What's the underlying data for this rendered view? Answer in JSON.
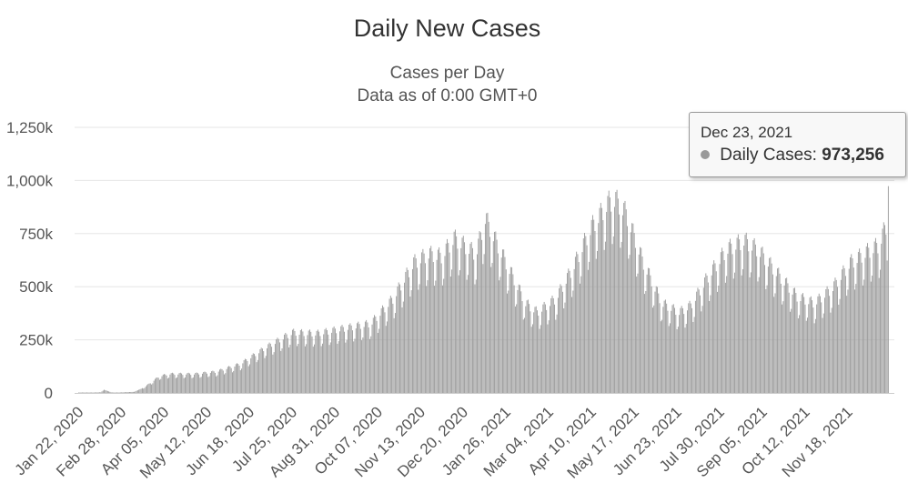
{
  "chart_data": {
    "type": "bar",
    "title": "Daily New Cases",
    "subtitle_lines": [
      "Cases per Day",
      "Data as of 0:00 GMT+0"
    ],
    "xlabel": "",
    "ylabel": "",
    "ylim": [
      0,
      1250000
    ],
    "y_ticks": [
      {
        "value": 0,
        "label": "0"
      },
      {
        "value": 250000,
        "label": "250k"
      },
      {
        "value": 500000,
        "label": "500k"
      },
      {
        "value": 750000,
        "label": "750k"
      },
      {
        "value": 1000000,
        "label": "1,000k"
      },
      {
        "value": 1250000,
        "label": "1,250k"
      }
    ],
    "x_start": "2020-01-22",
    "x_end": "2021-12-23",
    "x_tick_labels": [
      {
        "date": "2020-01-22",
        "label": "Jan 22, 2020"
      },
      {
        "date": "2020-02-28",
        "label": "Feb 28, 2020"
      },
      {
        "date": "2020-04-05",
        "label": "Apr 05, 2020"
      },
      {
        "date": "2020-05-12",
        "label": "May 12, 2020"
      },
      {
        "date": "2020-06-18",
        "label": "Jun 18, 2020"
      },
      {
        "date": "2020-07-25",
        "label": "Jul 25, 2020"
      },
      {
        "date": "2020-08-31",
        "label": "Aug 31, 2020"
      },
      {
        "date": "2020-10-07",
        "label": "Oct 07, 2020"
      },
      {
        "date": "2020-11-13",
        "label": "Nov 13, 2020"
      },
      {
        "date": "2020-12-20",
        "label": "Dec 20, 2020"
      },
      {
        "date": "2021-01-26",
        "label": "Jan 26, 2021"
      },
      {
        "date": "2021-03-04",
        "label": "Mar 04, 2021"
      },
      {
        "date": "2021-04-10",
        "label": "Apr 10, 2021"
      },
      {
        "date": "2021-05-17",
        "label": "May 17, 2021"
      },
      {
        "date": "2021-06-23",
        "label": "Jun 23, 2021"
      },
      {
        "date": "2021-07-30",
        "label": "Jul 30, 2021"
      },
      {
        "date": "2021-09-05",
        "label": "Sep 05, 2021"
      },
      {
        "date": "2021-10-12",
        "label": "Oct 12, 2021"
      },
      {
        "date": "2021-11-18",
        "label": "Nov 18, 2021"
      }
    ],
    "series": [
      {
        "name": "Daily Cases",
        "color": "#999999",
        "points": [
          {
            "date": "2020-01-22",
            "value": 500
          },
          {
            "date": "2020-02-10",
            "value": 3000
          },
          {
            "date": "2020-02-13",
            "value": 15000
          },
          {
            "date": "2020-02-20",
            "value": 1000
          },
          {
            "date": "2020-03-10",
            "value": 5000
          },
          {
            "date": "2020-03-20",
            "value": 30000
          },
          {
            "date": "2020-04-01",
            "value": 75000
          },
          {
            "date": "2020-04-10",
            "value": 85000
          },
          {
            "date": "2020-05-01",
            "value": 85000
          },
          {
            "date": "2020-05-20",
            "value": 95000
          },
          {
            "date": "2020-06-10",
            "value": 130000
          },
          {
            "date": "2020-07-01",
            "value": 200000
          },
          {
            "date": "2020-07-25",
            "value": 270000
          },
          {
            "date": "2020-08-15",
            "value": 265000
          },
          {
            "date": "2020-09-10",
            "value": 290000
          },
          {
            "date": "2020-10-01",
            "value": 310000
          },
          {
            "date": "2020-10-20",
            "value": 420000
          },
          {
            "date": "2020-11-07",
            "value": 580000
          },
          {
            "date": "2020-11-20",
            "value": 620000
          },
          {
            "date": "2020-12-01",
            "value": 610000
          },
          {
            "date": "2020-12-12",
            "value": 690000
          },
          {
            "date": "2020-12-31",
            "value": 620000
          },
          {
            "date": "2021-01-08",
            "value": 780000
          },
          {
            "date": "2021-01-15",
            "value": 700000
          },
          {
            "date": "2021-01-28",
            "value": 560000
          },
          {
            "date": "2021-02-12",
            "value": 400000
          },
          {
            "date": "2021-02-22",
            "value": 360000
          },
          {
            "date": "2021-03-10",
            "value": 420000
          },
          {
            "date": "2021-03-25",
            "value": 560000
          },
          {
            "date": "2021-04-10",
            "value": 740000
          },
          {
            "date": "2021-04-25",
            "value": 850000
          },
          {
            "date": "2021-05-01",
            "value": 860000
          },
          {
            "date": "2021-05-10",
            "value": 800000
          },
          {
            "date": "2021-05-25",
            "value": 580000
          },
          {
            "date": "2021-06-10",
            "value": 400000
          },
          {
            "date": "2021-06-25",
            "value": 360000
          },
          {
            "date": "2021-07-05",
            "value": 390000
          },
          {
            "date": "2021-07-20",
            "value": 520000
          },
          {
            "date": "2021-08-05",
            "value": 640000
          },
          {
            "date": "2021-08-20",
            "value": 680000
          },
          {
            "date": "2021-09-01",
            "value": 640000
          },
          {
            "date": "2021-09-20",
            "value": 520000
          },
          {
            "date": "2021-10-05",
            "value": 430000
          },
          {
            "date": "2021-10-20",
            "value": 400000
          },
          {
            "date": "2021-11-05",
            "value": 470000
          },
          {
            "date": "2021-11-20",
            "value": 580000
          },
          {
            "date": "2021-12-05",
            "value": 630000
          },
          {
            "date": "2021-12-15",
            "value": 660000
          },
          {
            "date": "2021-12-22",
            "value": 760000
          },
          {
            "date": "2021-12-23",
            "value": 973256
          }
        ]
      }
    ],
    "grid": true,
    "legend": "none"
  },
  "tooltip": {
    "date": "Dec 23, 2021",
    "series_label": "Daily Cases:",
    "value": "973,256"
  }
}
